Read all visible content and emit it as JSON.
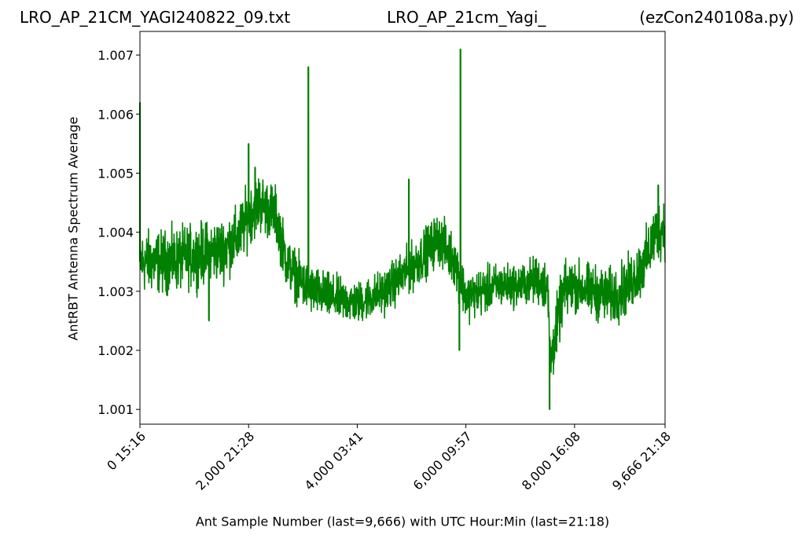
{
  "header": {
    "left_title": "LRO_AP_21CM_YAGI240822_09.txt",
    "center_title": "LRO_AP_21cm_Yagi_",
    "right_title": "(ezCon240108a.py)"
  },
  "chart_data": {
    "type": "line",
    "title": "",
    "xlabel": "Ant Sample Number (last=9,666) with UTC Hour:Min (last=21:18)",
    "ylabel": "AntRBT Antenna Spectrum Average",
    "xlim": [
      0,
      9666
    ],
    "ylim": [
      1.00075,
      1.0074
    ],
    "x_ticks": [
      {
        "value": 0,
        "label": "0  15:16"
      },
      {
        "value": 2000,
        "label": "2,000  21:28"
      },
      {
        "value": 4000,
        "label": "4,000  03:41"
      },
      {
        "value": 6000,
        "label": "6,000  09:57"
      },
      {
        "value": 8000,
        "label": "8,000  16:08"
      },
      {
        "value": 9666,
        "label": "9,666  21:18"
      }
    ],
    "y_ticks": [
      {
        "value": 1.001,
        "label": "1.001"
      },
      {
        "value": 1.002,
        "label": "1.002"
      },
      {
        "value": 1.003,
        "label": "1.003"
      },
      {
        "value": 1.004,
        "label": "1.004"
      },
      {
        "value": 1.005,
        "label": "1.005"
      },
      {
        "value": 1.006,
        "label": "1.006"
      },
      {
        "value": 1.007,
        "label": "1.007"
      }
    ],
    "grid": false,
    "series": [
      {
        "color": "#008000",
        "band_center": {
          "x": [
            0,
            500,
            1000,
            1500,
            1800,
            2000,
            2200,
            2500,
            2700,
            3000,
            3200,
            3500,
            4000,
            4500,
            5000,
            5500,
            5800,
            6000,
            6300,
            6600,
            7000,
            7300,
            7500,
            7560,
            7650,
            7800,
            8000,
            8300,
            8700,
            9000,
            9300,
            9500,
            9666
          ],
          "y": [
            1.0035,
            1.0035,
            1.0036,
            1.0037,
            1.0039,
            1.0043,
            1.0045,
            1.0043,
            1.0035,
            1.0031,
            1.003,
            1.0029,
            1.0028,
            1.003,
            1.0034,
            1.0039,
            1.0035,
            1.0029,
            1.003,
            1.0031,
            1.0031,
            1.0032,
            1.0031,
            1.0018,
            1.0023,
            1.003,
            1.0031,
            1.003,
            1.0029,
            1.0031,
            1.0035,
            1.004,
            1.0041
          ]
        },
        "band_halfwidth": {
          "x": [
            0,
            2000,
            2800,
            4000,
            5500,
            7000,
            7500,
            7600,
            8000,
            9666
          ],
          "y": [
            0.0006,
            0.0006,
            0.0005,
            0.0004,
            0.0005,
            0.0004,
            0.0005,
            0.0006,
            0.0005,
            0.0006
          ]
        },
        "spikes": [
          {
            "x": 3100,
            "y": 1.0068
          },
          {
            "x": 5900,
            "y": 1.0071
          },
          {
            "x": 5880,
            "y": 1.002
          },
          {
            "x": 3000,
            "y": 1.0034
          },
          {
            "x": 2000,
            "y": 1.0055
          },
          {
            "x": 4950,
            "y": 1.0049
          },
          {
            "x": 0,
            "y": 1.0062
          },
          {
            "x": 7540,
            "y": 1.001
          },
          {
            "x": 1270,
            "y": 1.0025
          },
          {
            "x": 2120,
            "y": 1.0051
          },
          {
            "x": 9540,
            "y": 1.0048
          }
        ]
      }
    ]
  }
}
